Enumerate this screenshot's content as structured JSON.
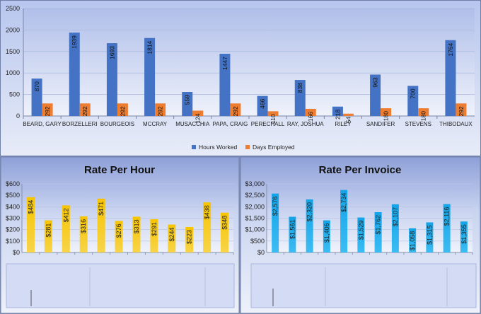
{
  "chart_data": [
    {
      "type": "bar",
      "title": "",
      "categories": [
        "BEARD, GARY",
        "BORZELLERI",
        "BOURGEOIS",
        "MCCRAY",
        "MUSACCHIA",
        "PAPA, CRAIG",
        "PERECHALL",
        "RAY, JOSHUA",
        "RILEY",
        "SANDIFER",
        "STEVENS",
        "THIBODAUX"
      ],
      "series": [
        {
          "name": "Hours Worked",
          "color": "#4472c4",
          "values": [
            870,
            1939,
            1693,
            1814,
            559,
            1447,
            466,
            838,
            218,
            963,
            700,
            1764
          ]
        },
        {
          "name": "Days Employed",
          "color": "#ed7d31",
          "values": [
            292,
            292,
            292,
            292,
            124,
            292,
            110,
            166,
            54,
            180,
            180,
            292
          ]
        }
      ],
      "yticks": [
        "0",
        "500",
        "1000",
        "1500",
        "2000",
        "2500"
      ],
      "ylim": [
        0,
        2500
      ],
      "legend": "bottom",
      "grid": true
    },
    {
      "type": "bar",
      "title": "Rate Per Hour",
      "categories": [
        "",
        "",
        "",
        "",
        "",
        "",
        "",
        "",
        "",
        "",
        "",
        ""
      ],
      "series": [
        {
          "name": "",
          "color": "#f4b800",
          "values": [
            484,
            281,
            412,
            316,
            471,
            276,
            313,
            291,
            244,
            223,
            438,
            348
          ],
          "labels": [
            "$484",
            "$281",
            "$412",
            "$316",
            "$471",
            "$276",
            "$313",
            "$291",
            "$244",
            "$223",
            "$438",
            "$348"
          ]
        }
      ],
      "yticks": [
        "$0",
        "$100",
        "$200",
        "$300",
        "$400",
        "$500",
        "$600"
      ],
      "ylim": [
        0,
        600
      ],
      "grid": true
    },
    {
      "type": "bar",
      "title": "Rate Per Invoice",
      "categories": [
        "",
        "",
        "",
        "",
        "",
        "",
        "",
        "",
        "",
        "",
        "",
        ""
      ],
      "series": [
        {
          "name": "",
          "color": "#1aa7e8",
          "values": [
            2576,
            1561,
            2320,
            1406,
            2734,
            1529,
            1762,
            2107,
            1058,
            1315,
            2116,
            1355
          ],
          "labels": [
            "$2,576",
            "$1,561",
            "$2,320",
            "$1,406",
            "$2,734",
            "$1,529",
            "$1,762",
            "$2,107",
            "$1,058",
            "$1,315",
            "$2,116",
            "$1,355"
          ]
        }
      ],
      "yticks": [
        "$0",
        "$500",
        "$1,000",
        "$1,500",
        "$2,000",
        "$2,500",
        "$3,000"
      ],
      "ylim": [
        0,
        3000
      ],
      "grid": true
    }
  ]
}
